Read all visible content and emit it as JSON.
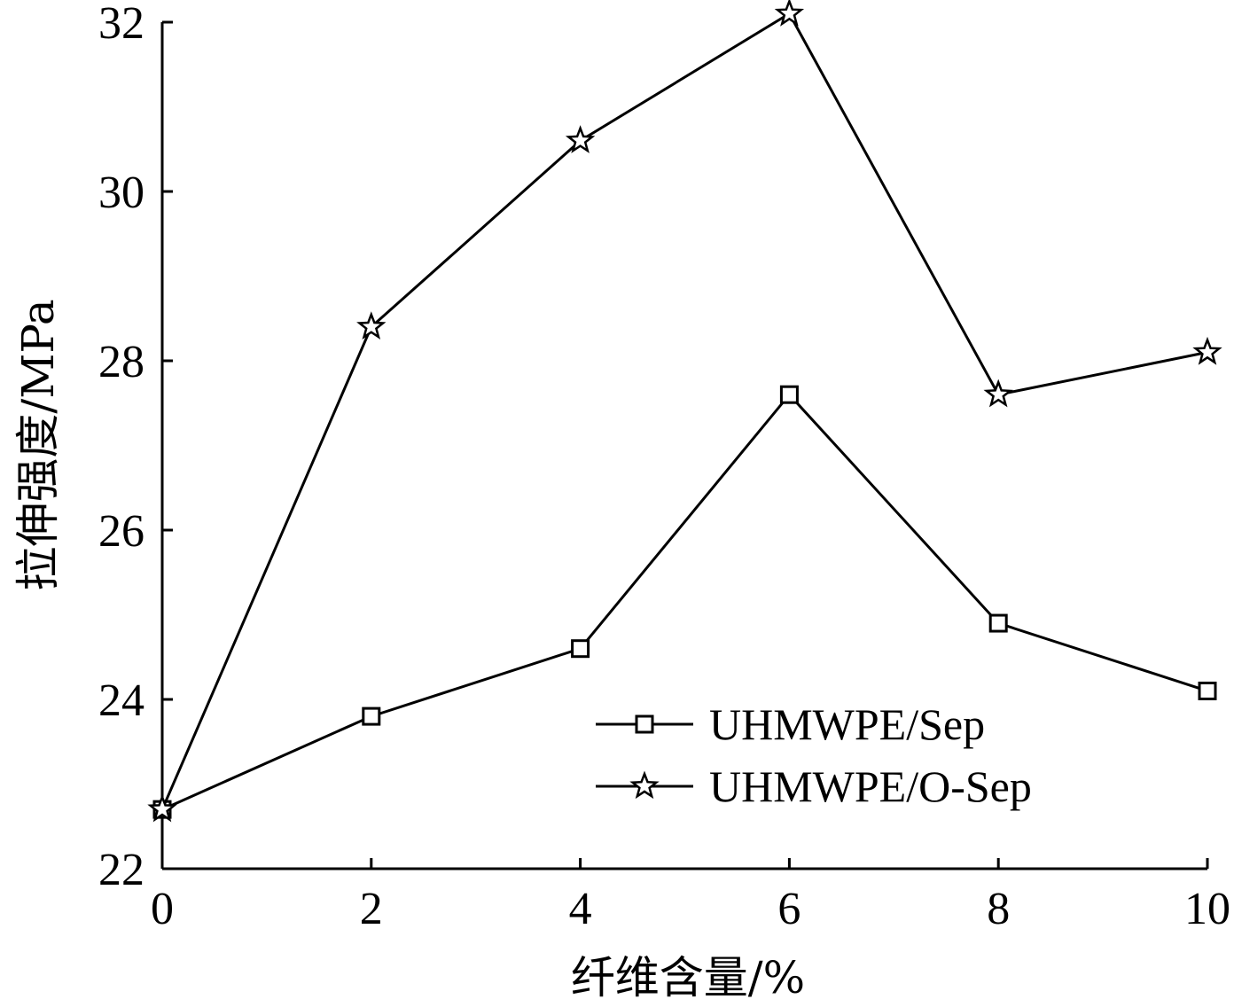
{
  "chart_data": {
    "type": "line",
    "title": "",
    "xlabel": "纤维含量/%",
    "ylabel": "拉伸强度/MPa",
    "x": [
      0,
      2,
      4,
      6,
      8,
      10
    ],
    "xlim": [
      0,
      10
    ],
    "ylim": [
      22,
      32
    ],
    "xticks": [
      "0",
      "2",
      "4",
      "6",
      "8",
      "10"
    ],
    "yticks": [
      "22",
      "24",
      "26",
      "28",
      "30",
      "32"
    ],
    "grid": false,
    "legend_position": "bottom-right",
    "series": [
      {
        "name": "UHMWPE/Sep",
        "marker": "square",
        "values": [
          22.7,
          23.8,
          24.6,
          27.6,
          24.9,
          24.1
        ]
      },
      {
        "name": "UHMWPE/O-Sep",
        "marker": "star",
        "values": [
          22.7,
          28.4,
          30.6,
          32.1,
          27.6,
          28.1
        ]
      }
    ]
  }
}
